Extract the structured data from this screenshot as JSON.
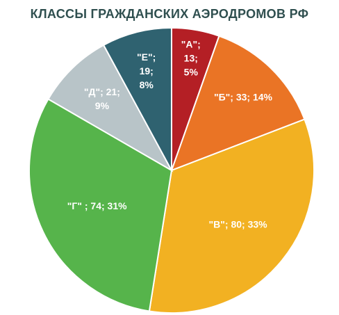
{
  "chart_data": {
    "type": "pie",
    "title": "КЛАССЫ ГРАЖДАНСКИХ АЭРОДРОМОВ РФ",
    "categories": [
      "\"А\"",
      "\"Б\"",
      "\"В\"",
      "\"Г\"",
      "\"Д\"",
      "\"Е\""
    ],
    "values": [
      13,
      33,
      80,
      74,
      21,
      19
    ],
    "percents": [
      5,
      14,
      33,
      31,
      9,
      8
    ],
    "data_labels": [
      [
        "\"А\";",
        "13;",
        "5%"
      ],
      [
        "\"Б\"; 33; 14%"
      ],
      [
        "\"В\"; 80; 33%"
      ],
      [
        "\"Г\" ; 74; 31%"
      ],
      [
        "\"Д\"; 21;",
        "9%"
      ],
      [
        "\"Е\";",
        "19;",
        "8%"
      ]
    ],
    "colors": [
      "#b41f25",
      "#ea7425",
      "#f2b122",
      "#56b44b",
      "#b8c4c8",
      "#2f6270"
    ],
    "legend": "none",
    "start": "top",
    "direction": "clockwise"
  }
}
